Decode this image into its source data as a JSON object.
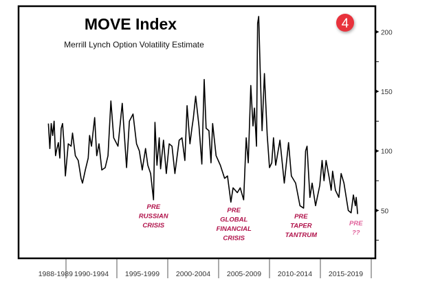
{
  "badge": {
    "label": "4",
    "color": "#e8323c"
  },
  "chart_data": {
    "type": "line",
    "title": "MOVE Index",
    "subtitle": "Merrill Lynch Option Volatility Estimate",
    "xlabel": "",
    "ylabel": "",
    "xlim": [
      1987.95,
      2020.35
    ],
    "ylim": [
      9,
      222
    ],
    "y_ticks": [
      25,
      50,
      75,
      100,
      125,
      150,
      175,
      200
    ],
    "y_tick_labels": [
      "50",
      "100",
      "150",
      "200"
    ],
    "x_categories": [
      "1988-1989",
      "1990-1994",
      "1995-1999",
      "2000-2004",
      "2005-2009",
      "2010-2014",
      "2015-2019"
    ],
    "grid": false,
    "line_color": "#000000",
    "series": [
      {
        "name": "MOVE Index",
        "x": [
          1988.27,
          1988.41,
          1988.55,
          1988.69,
          1988.83,
          1988.97,
          1989.11,
          1989.25,
          1989.39,
          1989.53,
          1989.66,
          1989.8,
          1989.94,
          1990.22,
          1990.5,
          1990.64,
          1990.92,
          1991.2,
          1991.48,
          1991.62,
          1991.9,
          1992.18,
          1992.32,
          1992.51,
          1992.82,
          1993.02,
          1993.24,
          1993.52,
          1993.85,
          1994.13,
          1994.41,
          1994.69,
          1995.11,
          1995.53,
          1995.95,
          1996.23,
          1996.59,
          1996.93,
          1997.21,
          1997.49,
          1997.82,
          1998.04,
          1998.32,
          1998.6,
          1998.74,
          1998.94,
          1999.16,
          1999.3,
          1999.58,
          1999.86,
          2000.14,
          2000.42,
          2000.7,
          2001.12,
          2001.4,
          2001.68,
          2001.9,
          2002.18,
          2002.37,
          2002.51,
          2002.74,
          2003.07,
          2003.35,
          2003.58,
          2003.77,
          2004.05,
          2004.25,
          2004.41,
          2004.75,
          2005.17,
          2005.59,
          2005.87,
          2006.2,
          2006.42,
          2006.84,
          2007.12,
          2007.46,
          2007.71,
          2007.91,
          2008.16,
          2008.38,
          2008.52,
          2008.72,
          2008.83,
          2008.94,
          2009.08,
          2009.27,
          2009.5,
          2009.78,
          2010.0,
          2010.22,
          2010.39,
          2010.61,
          2011.03,
          2011.45,
          2011.87,
          2012.15,
          2012.57,
          2012.99,
          2013.35,
          2013.55,
          2013.69,
          2013.97,
          2014.19,
          2014.53,
          2014.94,
          2015.17,
          2015.36,
          2015.56,
          2015.92,
          2016.06,
          2016.2,
          2016.48,
          2016.82,
          2017.04,
          2017.32,
          2017.74,
          2018.02,
          2018.24,
          2018.44,
          2018.52,
          2018.66
        ],
        "values": [
          123,
          102,
          123,
          113,
          125,
          96,
          102,
          107,
          94,
          119,
          123,
          107,
          79,
          106,
          104,
          115,
          96,
          92,
          77,
          73,
          84,
          94,
          113,
          104,
          128,
          96,
          106,
          84,
          86,
          96,
          142,
          111,
          104,
          140,
          86,
          125,
          131,
          106,
          100,
          84,
          102,
          88,
          81,
          59,
          124,
          88,
          111,
          85,
          109,
          81,
          106,
          104,
          81,
          109,
          111,
          92,
          138,
          106,
          119,
          127,
          146,
          121,
          89,
          160,
          119,
          117,
          90,
          123,
          96,
          88,
          77,
          79,
          57,
          69,
          65,
          69,
          59,
          111,
          90,
          155,
          121,
          136,
          104,
          207,
          213,
          169,
          117,
          165,
          113,
          86,
          90,
          111,
          88,
          109,
          73,
          107,
          79,
          73,
          54,
          52,
          100,
          104,
          61,
          73,
          54,
          71,
          92,
          75,
          92,
          75,
          67,
          83,
          67,
          61,
          81,
          73,
          50,
          48,
          63,
          54,
          61,
          47
        ]
      }
    ],
    "annotations": [
      {
        "lines": [
          "PRE",
          "RUSSIAN",
          "CRISIS"
        ],
        "year": 1998.6,
        "color": "#b0124a"
      },
      {
        "lines": [
          "PRE",
          "GLOBAL",
          "FINANCIAL",
          "CRISIS"
        ],
        "year": 2006.5,
        "color": "#b0124a"
      },
      {
        "lines": [
          "PRE",
          "TAPER",
          "TANTRUM"
        ],
        "year": 2013.1,
        "color": "#b0124a"
      },
      {
        "lines": [
          "PRE",
          "??"
        ],
        "year": 2018.5,
        "color": "#e0609a"
      }
    ]
  }
}
